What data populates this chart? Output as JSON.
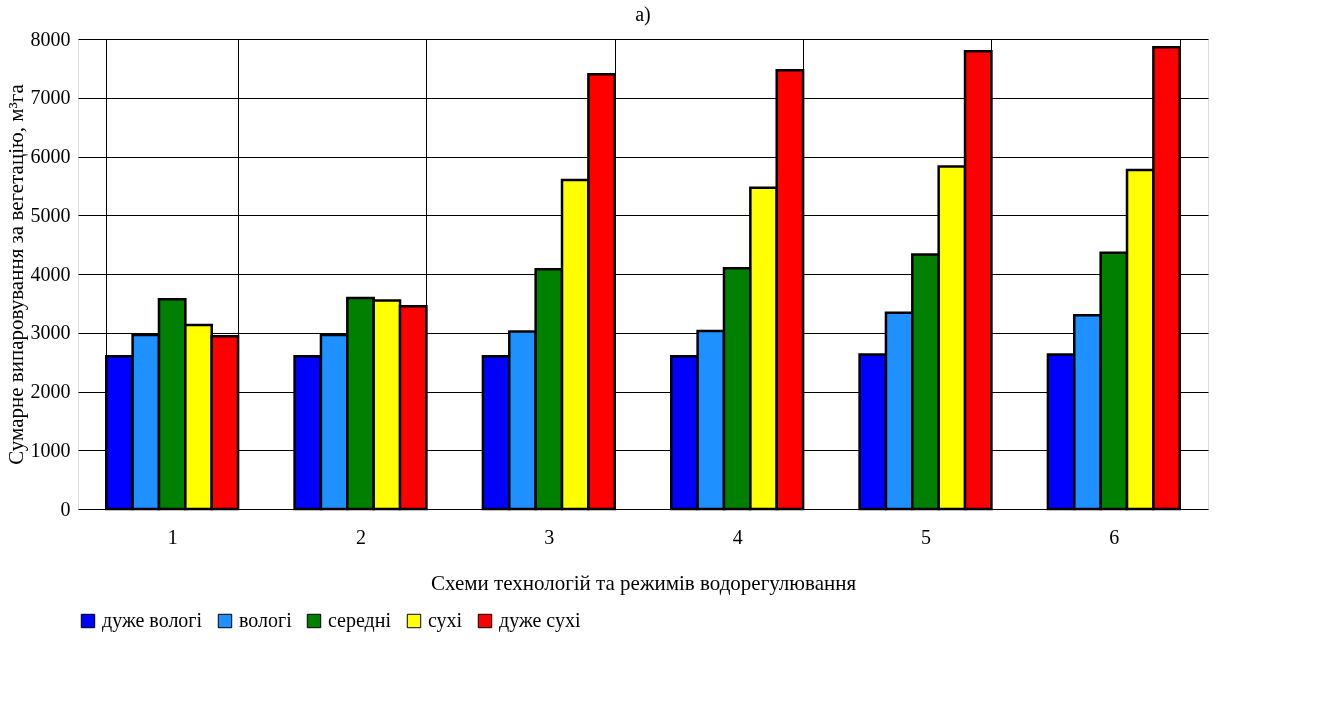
{
  "chart_data": {
    "type": "bar",
    "title": "а)",
    "xlabel": "Схеми технологій та режимів водорегулювання",
    "ylabel": "Сумарне випаровування за вегетацію, м³га",
    "categories": [
      "1",
      "2",
      "3",
      "4",
      "5",
      "6"
    ],
    "series": [
      {
        "name": "дуже вологі",
        "color": "#0000ff",
        "values": [
          2600,
          2600,
          2600,
          2600,
          2630,
          2630
        ]
      },
      {
        "name": "вологі",
        "color": "#1e90ff",
        "values": [
          2960,
          2960,
          3020,
          3030,
          3340,
          3300
        ]
      },
      {
        "name": "середні",
        "color": "#008000",
        "values": [
          3570,
          3590,
          4080,
          4100,
          4330,
          4360
        ]
      },
      {
        "name": "сухі",
        "color": "#ffff00",
        "values": [
          3130,
          3550,
          5600,
          5470,
          5830,
          5770
        ]
      },
      {
        "name": "дуже сухі",
        "color": "#ff0000",
        "values": [
          2940,
          3450,
          7400,
          7470,
          7790,
          7860
        ]
      }
    ],
    "ylim": [
      0,
      8000
    ],
    "yticks": [
      0,
      1000,
      2000,
      3000,
      4000,
      5000,
      6000,
      7000,
      8000
    ],
    "grid": true,
    "legend": "bottom"
  }
}
